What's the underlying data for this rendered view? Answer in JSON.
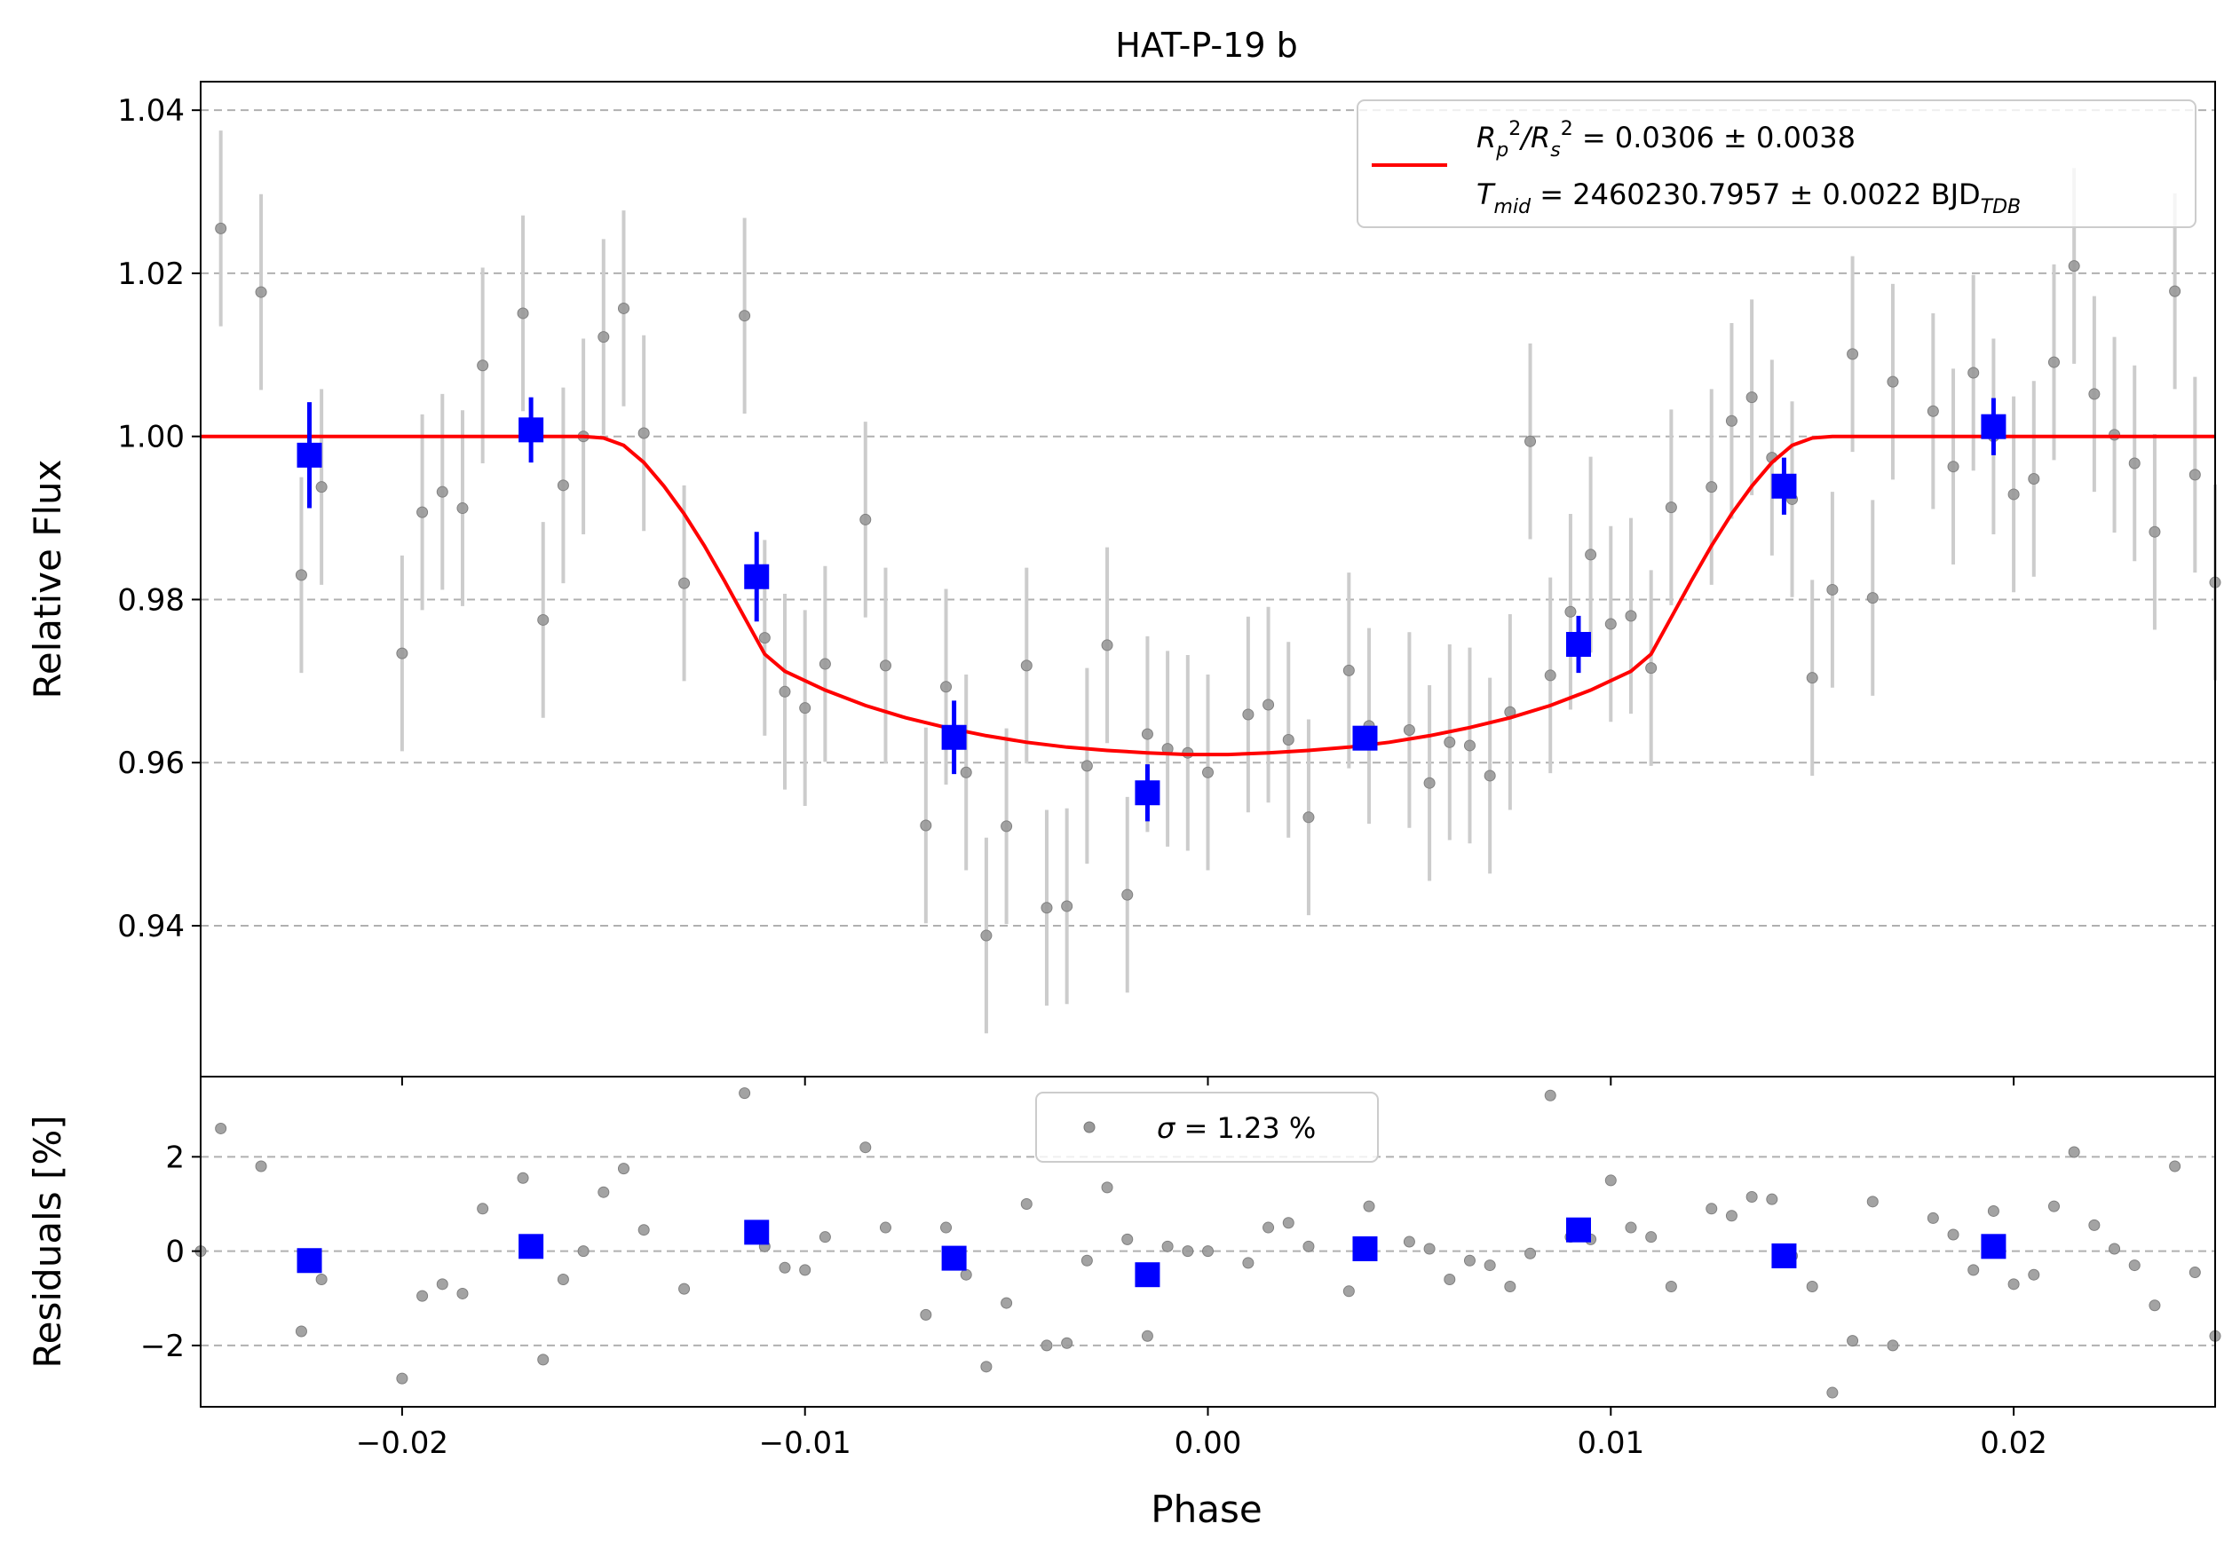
{
  "chart_data": [
    {
      "type": "scatter",
      "title": "HAT-P-19 b",
      "xlabel": "",
      "ylabel": "Relative Flux",
      "xlim": [
        -0.025,
        0.025
      ],
      "ylim": [
        0.9215,
        1.0435
      ],
      "x_ticks": [
        -0.02,
        -0.01,
        0.0,
        0.01,
        0.02
      ],
      "y_ticks": [
        0.94,
        0.96,
        0.98,
        1.0,
        1.02,
        1.04
      ],
      "y_tick_labels": [
        "0.94",
        "0.96",
        "0.98",
        "1.00",
        "1.02",
        "1.04"
      ],
      "grid": "horizontal dashed",
      "legend_position": "upper right",
      "legend": {
        "line1_prefix": "R",
        "line1_sub_p": "p",
        "line1_sup": "2",
        "line1_slash": "/R",
        "line1_sub_s": "s",
        "line1_value": " = 0.0306 ± 0.0038",
        "line2_prefix": "T",
        "line2_sub": "mid",
        "line2_value": " = 2460230.7957 ± 0.0022 BJD",
        "line2_unit_sub": "TDB"
      },
      "colors": {
        "raw": "#999999",
        "raw_err": "#cccccc",
        "binned": "#0000ff",
        "model": "#ff0000",
        "grid": "#b0b0b0"
      },
      "model": {
        "depth": 0.039,
        "phase": [
          -0.025,
          -0.0155,
          -0.015,
          -0.0145,
          -0.014,
          -0.0135,
          -0.013,
          -0.0125,
          -0.012,
          -0.0115,
          -0.011,
          -0.0105,
          -0.0095,
          -0.0085,
          -0.0075,
          -0.0065,
          -0.0055,
          -0.0045,
          -0.0035,
          -0.0025,
          -0.0015,
          -0.0005,
          0.0,
          0.0005,
          0.0015,
          0.0025,
          0.0035,
          0.0045,
          0.0055,
          0.0065,
          0.0075,
          0.0085,
          0.0095,
          0.0105,
          0.011,
          0.0115,
          0.012,
          0.0125,
          0.013,
          0.0135,
          0.014,
          0.0145,
          0.015,
          0.0155,
          0.025
        ],
        "flux": [
          1.0,
          1.0,
          0.9998,
          0.9989,
          0.9968,
          0.9939,
          0.9905,
          0.9866,
          0.9823,
          0.9778,
          0.9733,
          0.9712,
          0.9689,
          0.967,
          0.9655,
          0.9643,
          0.9633,
          0.9625,
          0.9619,
          0.9615,
          0.9612,
          0.961,
          0.961,
          0.961,
          0.9612,
          0.9615,
          0.9619,
          0.9625,
          0.9633,
          0.9643,
          0.9655,
          0.967,
          0.9689,
          0.9712,
          0.9733,
          0.9778,
          0.9823,
          0.9866,
          0.9905,
          0.9939,
          0.9968,
          0.9989,
          0.9998,
          1.0,
          1.0
        ]
      },
      "raw": {
        "phase": [
          -0.0245,
          -0.0235,
          -0.0225,
          -0.022,
          -0.02,
          -0.0195,
          -0.019,
          -0.0185,
          -0.018,
          -0.017,
          -0.0165,
          -0.016,
          -0.0155,
          -0.015,
          -0.0145,
          -0.014,
          -0.013,
          -0.0115,
          -0.011,
          -0.0105,
          -0.01,
          -0.0095,
          -0.0085,
          -0.008,
          -0.007,
          -0.0065,
          -0.006,
          -0.0055,
          -0.005,
          -0.0045,
          -0.004,
          -0.0035,
          -0.003,
          -0.0025,
          -0.002,
          -0.0015,
          -0.001,
          -0.0005,
          0.0,
          0.001,
          0.0015,
          0.002,
          0.0025,
          0.0035,
          0.004,
          0.005,
          0.0055,
          0.006,
          0.0065,
          0.007,
          0.0075,
          0.008,
          0.0085,
          0.009,
          0.0095,
          0.01,
          0.0105,
          0.011,
          0.0115,
          0.0125,
          0.013,
          0.0135,
          0.014,
          0.0145,
          0.015,
          0.0155,
          0.016,
          0.0165,
          0.017,
          0.018,
          0.0185,
          0.019,
          0.0195,
          0.02,
          0.0205,
          0.021,
          0.0215,
          0.022,
          0.0225,
          0.023,
          0.0235,
          0.024,
          0.0245,
          0.025
        ],
        "flux": [
          1.0255,
          1.0177,
          0.983,
          0.9938,
          0.9734,
          0.9907,
          0.9932,
          0.9912,
          1.0087,
          1.0151,
          0.9775,
          0.994,
          1.0,
          1.0122,
          1.0157,
          1.0004,
          0.982,
          1.0148,
          0.9753,
          0.9687,
          0.9667,
          0.9721,
          0.9898,
          0.9719,
          0.9523,
          0.9693,
          0.9588,
          0.9388,
          0.9522,
          0.9719,
          0.9422,
          0.9424,
          0.9596,
          0.9744,
          0.9438,
          0.9635,
          0.9617,
          0.9612,
          0.9588,
          0.9659,
          0.9671,
          0.9628,
          0.9533,
          0.9713,
          0.9645,
          0.964,
          0.9575,
          0.9625,
          0.9621,
          0.9584,
          0.9662,
          0.9994,
          0.9707,
          0.9785,
          0.9855,
          0.977,
          0.978,
          0.9716,
          0.9913,
          0.9938,
          1.0019,
          1.0048,
          0.9974,
          0.9923,
          0.9704,
          0.9812,
          1.0101,
          0.9802,
          1.0067,
          1.0031,
          0.9963,
          1.0078,
          1.0,
          0.9929,
          0.9948,
          1.0091,
          1.0209,
          1.0052,
          1.0002,
          0.9967,
          0.9883,
          1.0178,
          0.9953,
          0.9821
        ],
        "error": 0.012
      },
      "binned": {
        "phase": [
          -0.0223,
          -0.0168,
          -0.0112,
          -0.0063,
          -0.0015,
          0.0039,
          0.0092,
          0.0143,
          0.0195
        ],
        "flux": [
          0.9977,
          1.0008,
          0.9828,
          0.9631,
          0.9563,
          0.963,
          0.9745,
          0.9939,
          1.0012
        ],
        "error": [
          0.0065,
          0.004,
          0.0055,
          0.0045,
          0.0035,
          0.0015,
          0.0035,
          0.0035,
          0.0035
        ]
      }
    },
    {
      "type": "scatter",
      "title": "",
      "xlabel": "Phase",
      "ylabel": "Residuals [%]",
      "xlim": [
        -0.025,
        0.025
      ],
      "ylim": [
        -3.3,
        3.7
      ],
      "x_ticks": [
        -0.02,
        -0.01,
        0.0,
        0.01,
        0.02
      ],
      "x_tick_labels": [
        "−0.02",
        "−0.01",
        "0.00",
        "0.01",
        "0.02"
      ],
      "y_ticks": [
        -2,
        0,
        2
      ],
      "y_tick_labels": [
        "−2",
        "0",
        "2"
      ],
      "grid": "horizontal dashed",
      "legend_position": "upper center",
      "legend": {
        "sigma_symbol": "σ",
        "sigma_value": " = 1.23 %"
      },
      "raw": {
        "phase": [
          -0.025,
          -0.0245,
          -0.0235,
          -0.0225,
          -0.022,
          -0.02,
          -0.0195,
          -0.019,
          -0.0185,
          -0.018,
          -0.017,
          -0.0165,
          -0.016,
          -0.0155,
          -0.015,
          -0.0145,
          -0.014,
          -0.013,
          -0.0115,
          -0.011,
          -0.0105,
          -0.01,
          -0.0095,
          -0.0085,
          -0.008,
          -0.007,
          -0.0065,
          -0.006,
          -0.0055,
          -0.005,
          -0.0045,
          -0.004,
          -0.0035,
          -0.003,
          -0.0025,
          -0.002,
          -0.0015,
          -0.001,
          -0.0005,
          0.0,
          0.001,
          0.0015,
          0.002,
          0.0025,
          0.0035,
          0.004,
          0.005,
          0.0055,
          0.006,
          0.0065,
          0.007,
          0.0075,
          0.008,
          0.0085,
          0.009,
          0.0095,
          0.01,
          0.0105,
          0.011,
          0.0115,
          0.0125,
          0.013,
          0.0135,
          0.014,
          0.0145,
          0.015,
          0.0155,
          0.016,
          0.0165,
          0.017,
          0.018,
          0.0185,
          0.019,
          0.0195,
          0.02,
          0.0205,
          0.021,
          0.0215,
          0.022,
          0.0225,
          0.023,
          0.0235,
          0.024,
          0.0245,
          0.025
        ],
        "residual": [
          0.0,
          2.6,
          1.8,
          -1.7,
          -0.6,
          -2.7,
          -0.95,
          -0.7,
          -0.9,
          0.9,
          1.55,
          -2.3,
          -0.6,
          0.0,
          1.25,
          1.75,
          0.45,
          -0.8,
          3.35,
          0.1,
          -0.35,
          -0.4,
          0.3,
          2.2,
          0.5,
          -1.35,
          0.5,
          -0.5,
          -2.45,
          -1.1,
          1.0,
          -2.0,
          -1.95,
          -0.2,
          1.35,
          0.25,
          -1.8,
          0.1,
          0.0,
          0.0,
          -0.25,
          0.5,
          0.6,
          0.1,
          -0.85,
          0.95,
          0.2,
          0.05,
          -0.6,
          -0.2,
          -0.3,
          -0.75,
          -0.05,
          3.3,
          0.3,
          0.25,
          1.5,
          0.5,
          0.3,
          -0.75,
          0.9,
          0.75,
          1.15,
          1.1,
          -0.1,
          -0.75,
          -3.0,
          -1.9,
          1.05,
          -2.0,
          0.7,
          0.35,
          -0.4,
          0.85,
          -0.7,
          -0.5,
          0.95,
          2.1,
          0.55,
          0.05,
          -0.3,
          -1.15,
          1.8,
          -0.45,
          -1.8
        ]
      },
      "binned": {
        "phase": [
          -0.0223,
          -0.0168,
          -0.0112,
          -0.0063,
          -0.0015,
          0.0039,
          0.0092,
          0.0143,
          0.0195
        ],
        "residual": [
          -0.2,
          0.1,
          0.4,
          -0.15,
          -0.5,
          0.05,
          0.45,
          -0.1,
          0.1
        ]
      }
    }
  ]
}
